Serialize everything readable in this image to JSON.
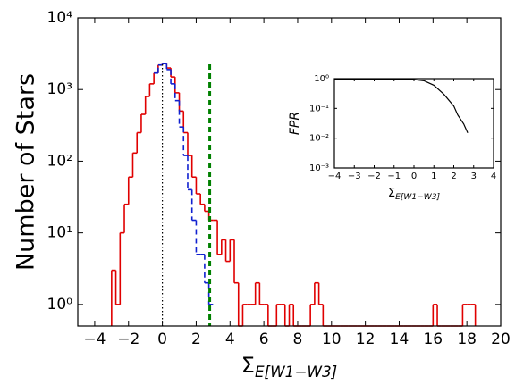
{
  "chart_data": [
    {
      "type": "histogram",
      "y_label": "Number of Stars",
      "x_label": {
        "symbol": "Σ",
        "subscript": "E[W1−W3]"
      },
      "bins": [
        -3,
        -2.75,
        -2.5,
        -2.25,
        -2,
        -1.75,
        -1.5,
        -1.25,
        -1,
        -0.75,
        -0.5,
        -0.25,
        0,
        0.25,
        0.5,
        0.75,
        1,
        1.25,
        1.5,
        1.75,
        2,
        2.25,
        2.5,
        2.75,
        3,
        3.25,
        3.5,
        3.75,
        4,
        4.25,
        4.5,
        4.75,
        5,
        5.25,
        5.5,
        5.75,
        6,
        6.25,
        6.5,
        6.75,
        7,
        7.25,
        7.5,
        7.75,
        8,
        8.25,
        8.5,
        8.75,
        9,
        9.25,
        9.5,
        9.75,
        10,
        10.25,
        10.5,
        10.75,
        11,
        11.25,
        11.5,
        11.75,
        12,
        12.25,
        12.5,
        12.75,
        13,
        13.25,
        13.5,
        13.75,
        14,
        14.25,
        14.5,
        14.75,
        15,
        15.25,
        15.5,
        15.75,
        16,
        16.25,
        16.5,
        16.75,
        17,
        17.25,
        17.5,
        17.75,
        18,
        18.25,
        18.5
      ],
      "series": [
        {
          "color": "#e00000",
          "style": "solid",
          "values": [
            3,
            1,
            10,
            25,
            60,
            130,
            250,
            450,
            800,
            1200,
            1700,
            2200,
            2300,
            2000,
            1500,
            900,
            500,
            250,
            120,
            60,
            35,
            25,
            20,
            15,
            15,
            5,
            8,
            4,
            8,
            2,
            0,
            1,
            1,
            1,
            2,
            1,
            1,
            0,
            0,
            1,
            1,
            0,
            1,
            0,
            0,
            0,
            0,
            1,
            2,
            1,
            0,
            0,
            0,
            0,
            0,
            0,
            0,
            0,
            0,
            0,
            0,
            0,
            0,
            0,
            0,
            0,
            0,
            0,
            0,
            0,
            0,
            0,
            0,
            0,
            0,
            0,
            1,
            0,
            0,
            0,
            0,
            0,
            0,
            1,
            1,
            1
          ]
        },
        {
          "color": "#1020d0",
          "style": "dashed",
          "values": [
            null,
            null,
            null,
            null,
            null,
            null,
            null,
            null,
            null,
            null,
            1700,
            2200,
            2300,
            1900,
            1200,
            700,
            300,
            120,
            40,
            15,
            5,
            5,
            2,
            1,
            null,
            null,
            null,
            null,
            null,
            null,
            null,
            null,
            null,
            null,
            null,
            null,
            null,
            null,
            null,
            null,
            null,
            null,
            null,
            null,
            null,
            null,
            null,
            null,
            null,
            null,
            null,
            null,
            null,
            null,
            null,
            null,
            null,
            null,
            null,
            null,
            null,
            null,
            null,
            null,
            null,
            null,
            null,
            null,
            null,
            null,
            null,
            null,
            null,
            null,
            null,
            null,
            null,
            null,
            null,
            null,
            null,
            null,
            null,
            null,
            null,
            null
          ]
        }
      ],
      "vlines": [
        {
          "x": 0,
          "color": "#000000",
          "style": "dotted"
        },
        {
          "x": 2.8,
          "color": "#008000",
          "style": "dashed"
        }
      ],
      "log_y": true,
      "xlim": [
        -5,
        20
      ],
      "xticks": [
        {
          "value": -4,
          "label": "−4"
        },
        {
          "value": -2,
          "label": "−2"
        },
        0,
        2,
        4,
        6,
        8,
        10,
        12,
        14,
        16,
        18,
        20
      ],
      "ylim": [
        0.5,
        10000
      ],
      "yticks": [
        {
          "value": 1,
          "label": "10⁰"
        },
        {
          "value": 10,
          "label": "10¹"
        },
        {
          "value": 100,
          "label": "10²"
        },
        {
          "value": 1000,
          "label": "10³"
        },
        {
          "value": 10000,
          "label": "10⁴"
        }
      ]
    },
    {
      "type": "line",
      "y_label": "FPR",
      "x_label": {
        "symbol": "Σ",
        "subscript": "E[W1−W3]"
      },
      "x": [
        -4,
        -3,
        -2,
        -1,
        0,
        0.5,
        1,
        1.5,
        2,
        2.2,
        2.5,
        2.7
      ],
      "series": [
        {
          "color": "#000000",
          "values": [
            0.95,
            0.95,
            0.95,
            0.95,
            0.93,
            0.85,
            0.6,
            0.3,
            0.12,
            0.06,
            0.03,
            0.015
          ]
        }
      ],
      "log_y": true,
      "xlim": [
        -4,
        4
      ],
      "xticks": [
        {
          "value": -4,
          "label": "−4"
        },
        {
          "value": -3,
          "label": "−3"
        },
        {
          "value": -2,
          "label": "−2"
        },
        {
          "value": -1,
          "label": "−1"
        },
        0,
        1,
        2,
        3,
        4
      ],
      "ylim": [
        0.001,
        1
      ],
      "yticks": [
        {
          "value": 0.001,
          "label": "10⁻³"
        },
        {
          "value": 0.01,
          "label": "10⁻²"
        },
        {
          "value": 0.1,
          "label": "10⁻¹"
        },
        {
          "value": 1,
          "label": "10⁰"
        }
      ]
    }
  ]
}
